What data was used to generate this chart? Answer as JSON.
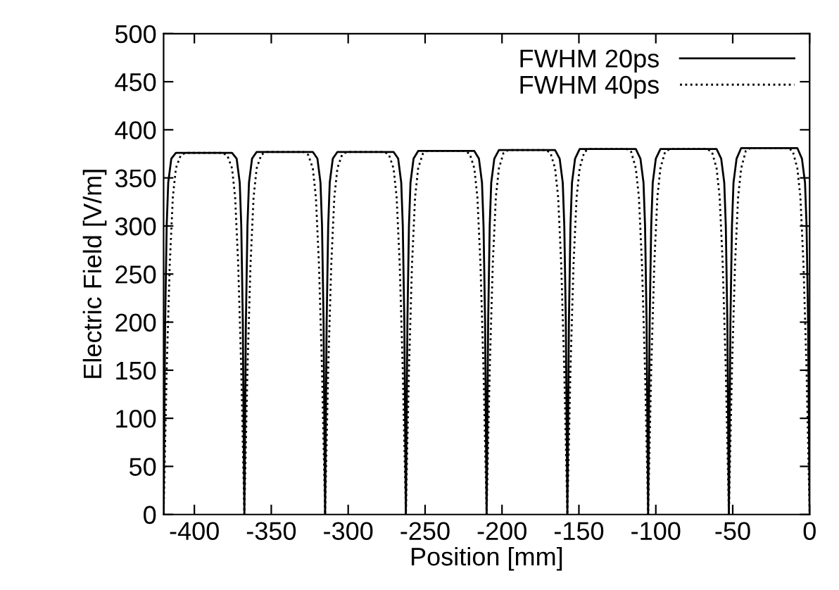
{
  "chart_data": {
    "type": "line",
    "xlabel": "Position [mm]",
    "ylabel": "Electric Field [V/m]",
    "xlim": [
      -420,
      0
    ],
    "ylim": [
      0,
      500
    ],
    "xticks": [
      -400,
      -350,
      -300,
      -250,
      -200,
      -150,
      -100,
      -50,
      0
    ],
    "yticks": [
      0,
      50,
      100,
      150,
      200,
      250,
      300,
      350,
      400,
      450,
      500
    ],
    "grid": false,
    "legend": "top right",
    "marker": "none",
    "series": [
      {
        "name": "FWHM 20ps",
        "color": "#000000",
        "line_style": "solid",
        "x": [
          -420,
          -419,
          -418,
          -417,
          -415,
          -412,
          -375.5,
          -372.5,
          -370.5,
          -369.5,
          -368.5,
          -367.5,
          -366.5,
          -365.5,
          -364.5,
          -362.5,
          -359.5,
          -323,
          -320,
          -318,
          -317,
          -316,
          -315,
          -314,
          -313,
          -312,
          -310,
          -307,
          -270.5,
          -267.5,
          -265.5,
          -264.5,
          -263.5,
          -262.5,
          -261.5,
          -260.5,
          -259.5,
          -257.5,
          -254.5,
          -218,
          -215,
          -213,
          -212,
          -211,
          -210,
          -209,
          -208,
          -207,
          -205,
          -202,
          -165.5,
          -162.5,
          -160.5,
          -159.5,
          -158.5,
          -157.5,
          -156.5,
          -155.5,
          -154.5,
          -152.5,
          -149.5,
          -113,
          -110,
          -108,
          -107,
          -106,
          -105,
          -104,
          -103,
          -102,
          -100,
          -97,
          -60.5,
          -57.5,
          -55.5,
          -54.5,
          -53.5,
          -52.5,
          -51.5,
          -50.5,
          -49.5,
          -47.5,
          -44.5,
          -8,
          -5,
          -3,
          -2,
          -1,
          0
        ],
        "values": [
          0,
          200,
          300,
          345,
          370,
          376,
          376,
          370,
          345,
          300,
          200,
          0,
          200,
          300,
          345,
          370,
          377,
          377,
          370,
          345,
          300,
          200,
          0,
          200,
          300,
          345,
          370,
          377,
          377,
          370,
          345,
          300,
          200,
          0,
          200,
          300,
          345,
          370,
          378,
          378,
          370,
          345,
          300,
          200,
          0,
          200,
          300,
          345,
          370,
          379,
          379,
          370,
          345,
          300,
          200,
          0,
          200,
          300,
          345,
          370,
          380,
          380,
          370,
          345,
          300,
          200,
          0,
          200,
          300,
          345,
          370,
          380,
          380,
          370,
          345,
          300,
          200,
          0,
          200,
          300,
          345,
          370,
          381,
          381,
          370,
          345,
          300,
          200,
          0
        ]
      },
      {
        "name": "FWHM 40ps",
        "color": "#000000",
        "line_style": "dotted",
        "x": [
          -420,
          -418,
          -416,
          -414,
          -412,
          -409,
          -406,
          -381.5,
          -378.5,
          -375.5,
          -373.5,
          -371.5,
          -369.5,
          -367.5,
          -365.5,
          -363.5,
          -361.5,
          -359.5,
          -356.5,
          -353.5,
          -329,
          -326,
          -323,
          -321,
          -319,
          -317,
          -315,
          -313,
          -311,
          -309,
          -307,
          -304,
          -301,
          -276.5,
          -273.5,
          -270.5,
          -268.5,
          -266.5,
          -264.5,
          -262.5,
          -260.5,
          -258.5,
          -256.5,
          -254.5,
          -251.5,
          -248.5,
          -224,
          -221,
          -218,
          -216,
          -214,
          -212,
          -210,
          -208,
          -206,
          -204,
          -202,
          -199,
          -196,
          -171.5,
          -168.5,
          -165.5,
          -163.5,
          -161.5,
          -159.5,
          -157.5,
          -155.5,
          -153.5,
          -151.5,
          -149.5,
          -146.5,
          -143.5,
          -119,
          -116,
          -113,
          -111,
          -109,
          -107,
          -105,
          -103,
          -101,
          -99,
          -97,
          -94,
          -91,
          -66.5,
          -63.5,
          -60.5,
          -58.5,
          -56.5,
          -54.5,
          -52.5,
          -50.5,
          -48.5,
          -46.5,
          -44.5,
          -41.5,
          -38.5,
          -14,
          -11,
          -8,
          -6,
          -4,
          -2,
          0
        ],
        "values": [
          0,
          150,
          260,
          330,
          360,
          373,
          376,
          376,
          373,
          360,
          330,
          260,
          150,
          0,
          150,
          260,
          330,
          360,
          374,
          377,
          377,
          374,
          360,
          330,
          260,
          150,
          0,
          150,
          260,
          330,
          360,
          374,
          377,
          377,
          374,
          360,
          330,
          260,
          150,
          0,
          150,
          260,
          330,
          360,
          375,
          378,
          378,
          375,
          360,
          330,
          260,
          150,
          0,
          150,
          260,
          330,
          360,
          376,
          379,
          379,
          376,
          360,
          330,
          260,
          150,
          0,
          150,
          260,
          330,
          360,
          377,
          380,
          380,
          377,
          360,
          330,
          260,
          150,
          0,
          150,
          260,
          330,
          360,
          377,
          380,
          380,
          377,
          360,
          330,
          260,
          150,
          0,
          150,
          260,
          330,
          360,
          378,
          381,
          381,
          378,
          360,
          330,
          260,
          150,
          0
        ]
      }
    ]
  }
}
